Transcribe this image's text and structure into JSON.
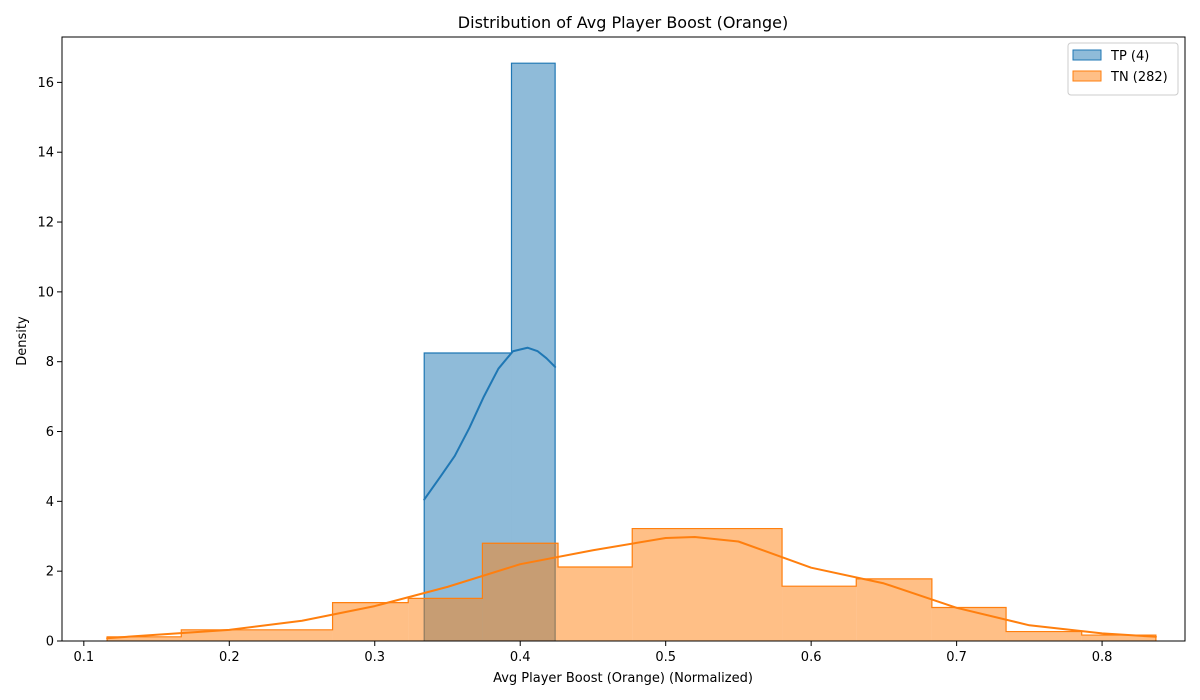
{
  "chart_data": {
    "type": "histogram",
    "title": "Distribution of Avg Player Boost (Orange)",
    "xlabel": "Avg Player Boost (Orange) (Normalized)",
    "ylabel": "Density",
    "xlim": [
      0.085,
      0.857
    ],
    "ylim": [
      0,
      17.3
    ],
    "xticks": [
      0.1,
      0.2,
      0.3,
      0.4,
      0.5,
      0.6,
      0.7,
      0.8
    ],
    "xtick_labels": [
      "0.1",
      "0.2",
      "0.3",
      "0.4",
      "0.5",
      "0.6",
      "0.7",
      "0.8"
    ],
    "yticks": [
      0,
      2,
      4,
      6,
      8,
      10,
      12,
      14,
      16
    ],
    "ytick_labels": [
      "0",
      "2",
      "4",
      "6",
      "8",
      "10",
      "12",
      "14",
      "16"
    ],
    "grid": false,
    "legend_position": "top-right",
    "series": [
      {
        "name": "TP (4)",
        "color": "#1f77b4",
        "bin_edges": [
          0.334,
          0.394,
          0.424
        ],
        "values": [
          8.25,
          16.55
        ],
        "kde": {
          "x": [
            0.334,
            0.345,
            0.355,
            0.365,
            0.375,
            0.385,
            0.395,
            0.405,
            0.412,
            0.418,
            0.424
          ],
          "y": [
            4.05,
            4.7,
            5.3,
            6.1,
            7.0,
            7.8,
            8.3,
            8.4,
            8.3,
            8.1,
            7.85
          ]
        }
      },
      {
        "name": "TN (282)",
        "color": "#ff7f0e",
        "bin_edges": [
          0.116,
          0.167,
          0.271,
          0.323,
          0.374,
          0.426,
          0.477,
          0.58,
          0.631,
          0.683,
          0.734,
          0.786,
          0.837
        ],
        "values": [
          0.12,
          0.32,
          1.1,
          1.22,
          2.8,
          2.12,
          3.22,
          1.57,
          1.78,
          0.96,
          0.27,
          0.17
        ],
        "kde": {
          "x": [
            0.116,
            0.15,
            0.2,
            0.25,
            0.3,
            0.35,
            0.4,
            0.45,
            0.5,
            0.52,
            0.55,
            0.6,
            0.65,
            0.7,
            0.75,
            0.8,
            0.837
          ],
          "y": [
            0.08,
            0.18,
            0.32,
            0.58,
            1.0,
            1.55,
            2.2,
            2.6,
            2.95,
            2.98,
            2.85,
            2.1,
            1.65,
            0.95,
            0.45,
            0.22,
            0.12
          ]
        }
      }
    ]
  }
}
